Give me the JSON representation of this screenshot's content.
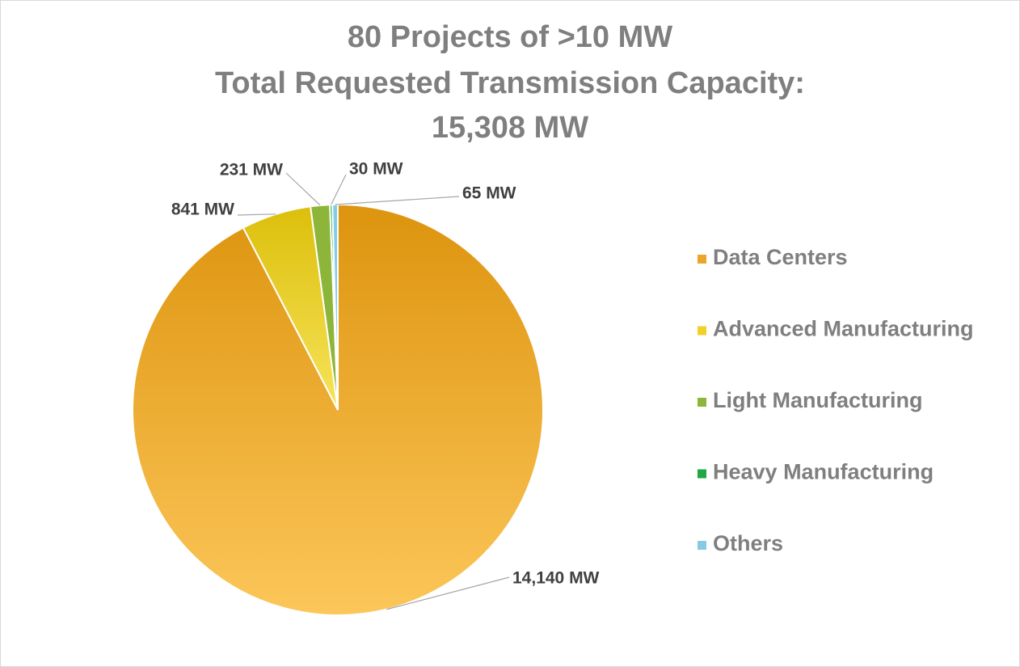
{
  "chart_data": {
    "type": "pie",
    "title": [
      "80 Projects of >10 MW",
      "Total Requested Transmission Capacity:",
      "15,308 MW"
    ],
    "categories": [
      "Data Centers",
      "Advanced Manufacturing",
      "Light Manufacturing",
      "Heavy Manufacturing",
      "Others"
    ],
    "values": [
      14140,
      841,
      231,
      30,
      65
    ],
    "value_labels": [
      "14,140 MW",
      "841 MW",
      "231 MW",
      "30 MW",
      "65 MW"
    ],
    "colors": [
      "#eaa52a",
      "#f0d12a",
      "#8db53a",
      "#1fa844",
      "#86cbe6"
    ],
    "legend": "right"
  }
}
